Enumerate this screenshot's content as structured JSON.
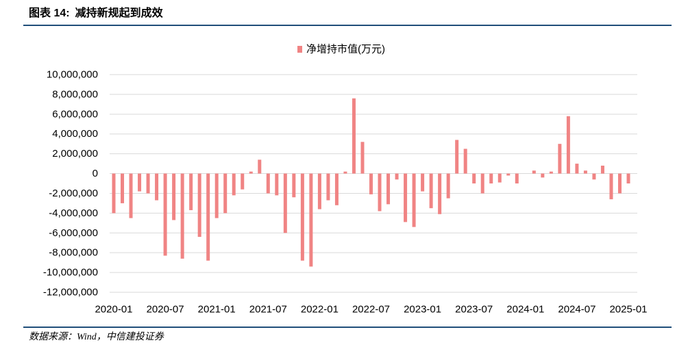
{
  "header": {
    "figure_label": "图表 14:",
    "title": "减持新规起到成效"
  },
  "source": "数据来源：Wind，中信建投证券",
  "colors": {
    "rule": "#1f4e79",
    "bar": "#f08484",
    "grid": "#d9d9d9",
    "text": "#000000"
  },
  "chart_data": {
    "type": "bar",
    "ylim": [
      -12000000,
      10000000
    ],
    "yticks": [
      "10,000,000",
      "8,000,000",
      "6,000,000",
      "4,000,000",
      "2,000,000",
      "0",
      "-2,000,000",
      "-4,000,000",
      "-6,000,000",
      "-8,000,000",
      "-10,000,000",
      "-12,000,000"
    ],
    "xticks": [
      "2020-01",
      "2020-07",
      "2021-01",
      "2021-07",
      "2022-01",
      "2022-07",
      "2023-01",
      "2023-07",
      "2024-01",
      "2024-07",
      "2025-01"
    ],
    "x": [
      "2020-01",
      "2020-02",
      "2020-03",
      "2020-04",
      "2020-05",
      "2020-06",
      "2020-07",
      "2020-08",
      "2020-09",
      "2020-10",
      "2020-11",
      "2020-12",
      "2021-01",
      "2021-02",
      "2021-03",
      "2021-04",
      "2021-05",
      "2021-06",
      "2021-07",
      "2021-08",
      "2021-09",
      "2021-10",
      "2021-11",
      "2021-12",
      "2022-01",
      "2022-02",
      "2022-03",
      "2022-04",
      "2022-05",
      "2022-06",
      "2022-07",
      "2022-08",
      "2022-09",
      "2022-10",
      "2022-11",
      "2022-12",
      "2023-01",
      "2023-02",
      "2023-03",
      "2023-04",
      "2023-05",
      "2023-06",
      "2023-07",
      "2023-08",
      "2023-09",
      "2023-10",
      "2023-11",
      "2023-12",
      "2024-01",
      "2024-02",
      "2024-03",
      "2024-04",
      "2024-05",
      "2024-06",
      "2024-07",
      "2024-08",
      "2024-09",
      "2024-10",
      "2024-11",
      "2024-12",
      "2025-01"
    ],
    "series": [
      {
        "name": "净增持市值(万元)",
        "values": [
          -4000000,
          -3000000,
          -4500000,
          -1800000,
          -2000000,
          -2700000,
          -8300000,
          -4700000,
          -8600000,
          -3700000,
          -6400000,
          -8800000,
          -4500000,
          -4000000,
          -2200000,
          -1600000,
          200000,
          1400000,
          -2000000,
          -2200000,
          -6000000,
          -2400000,
          -8800000,
          -9400000,
          -3600000,
          -2700000,
          -3200000,
          200000,
          7600000,
          3200000,
          -2100000,
          -3800000,
          -3100000,
          -600000,
          -4900000,
          -5400000,
          -1800000,
          -3500000,
          -4100000,
          -2500000,
          3400000,
          2500000,
          -1000000,
          -2000000,
          -1000000,
          -900000,
          -200000,
          -1000000,
          0,
          300000,
          -400000,
          200000,
          3000000,
          5800000,
          1000000,
          300000,
          -600000,
          800000,
          -2600000,
          -2000000,
          -1000000
        ]
      }
    ],
    "legend_position": "top-center",
    "grid": true
  }
}
